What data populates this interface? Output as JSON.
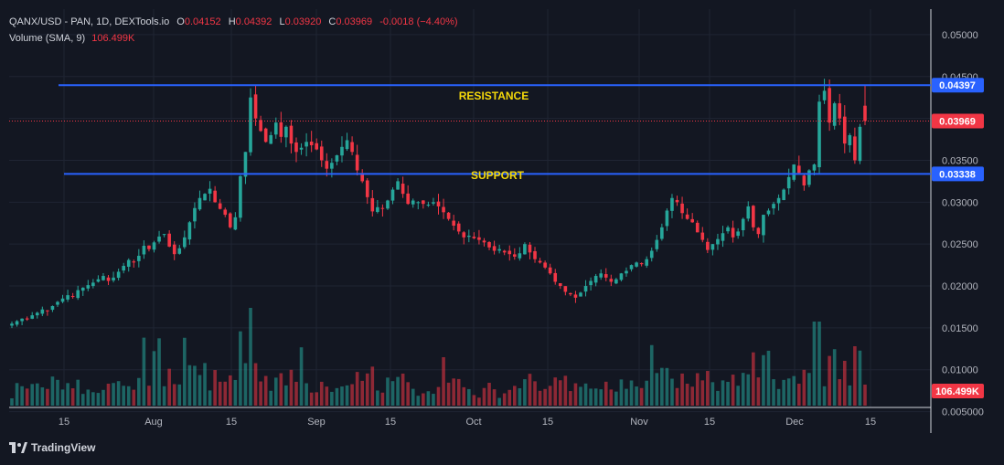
{
  "header": {
    "symbol": "QANX/USD - PAN, 1D, DEXTools.io",
    "o_label": "O",
    "o_value": "0.04152",
    "h_label": "H",
    "h_value": "0.04392",
    "l_label": "L",
    "l_value": "0.03920",
    "c_label": "C",
    "c_value": "0.03969",
    "change": "-0.0018 (−4.40%)",
    "volume_label": "Volume (SMA, 9)",
    "volume_value": "106.499K"
  },
  "branding": {
    "name": "TradingView"
  },
  "colors": {
    "background": "#131722",
    "grid": "#1f2433",
    "text": "#b2b5be",
    "up": "#26a69a",
    "down": "#f23645",
    "line": "#2962ff",
    "annotation": "#f5d90a"
  },
  "chart_data": {
    "type": "candlestick",
    "x_tick_labels": [
      "15",
      "Aug",
      "15",
      "Sep",
      "15",
      "Oct",
      "15",
      "Nov",
      "15",
      "Dec",
      "15"
    ],
    "price_axis_labels": [
      "0.05000",
      "0.04500",
      "0.04000",
      "0.03500",
      "0.03000",
      "0.02500",
      "0.02000",
      "0.01500",
      "0.01000",
      "0.005000"
    ],
    "price_range": [
      0.0005,
      0.0516
    ],
    "resistance": {
      "label": "RESISTANCE",
      "value": 0.04397,
      "tag": "0.04397"
    },
    "support": {
      "label": "SUPPORT",
      "value": 0.03338,
      "tag": "0.03338"
    },
    "last_price": {
      "value": 0.03969,
      "tag": "0.03969"
    },
    "volume_tag": "106.499K",
    "grid": true,
    "close_series": [
      0.0155,
      0.0158,
      0.0161,
      0.016,
      0.0165,
      0.0168,
      0.0172,
      0.017,
      0.0176,
      0.0181,
      0.0185,
      0.0189,
      0.0187,
      0.0195,
      0.0198,
      0.0201,
      0.0204,
      0.0208,
      0.0212,
      0.0206,
      0.021,
      0.0217,
      0.0224,
      0.0231,
      0.0228,
      0.0236,
      0.0248,
      0.0244,
      0.0252,
      0.0259,
      0.0262,
      0.0247,
      0.0238,
      0.0245,
      0.0258,
      0.0276,
      0.0293,
      0.0305,
      0.031,
      0.0316,
      0.03,
      0.0292,
      0.0285,
      0.027,
      0.0282,
      0.0331,
      0.036,
      0.0425,
      0.04,
      0.0385,
      0.0372,
      0.038,
      0.0395,
      0.0378,
      0.039,
      0.037,
      0.036,
      0.0365,
      0.0372,
      0.0368,
      0.0363,
      0.035,
      0.034,
      0.0347,
      0.0356,
      0.0366,
      0.0374,
      0.036,
      0.0338,
      0.0325,
      0.0306,
      0.0289,
      0.0294,
      0.0292,
      0.0302,
      0.0315,
      0.0325,
      0.031,
      0.0298,
      0.0302,
      0.03,
      0.0298,
      0.0297,
      0.03,
      0.0295,
      0.0288,
      0.028,
      0.0272,
      0.0265,
      0.0258,
      0.026,
      0.0257,
      0.0255,
      0.0252,
      0.0246,
      0.0242,
      0.0244,
      0.024,
      0.0238,
      0.0235,
      0.0239,
      0.025,
      0.024,
      0.0232,
      0.0228,
      0.0222,
      0.0215,
      0.0205,
      0.02,
      0.0193,
      0.019,
      0.0186,
      0.0192,
      0.02,
      0.0206,
      0.0212,
      0.0215,
      0.021,
      0.0205,
      0.0208,
      0.0215,
      0.0218,
      0.0225,
      0.0228,
      0.0226,
      0.0232,
      0.0242,
      0.0255,
      0.027,
      0.029,
      0.0305,
      0.03,
      0.0287,
      0.028,
      0.0276,
      0.0264,
      0.0255,
      0.0243,
      0.025,
      0.0256,
      0.0263,
      0.027,
      0.0258,
      0.0265,
      0.028,
      0.0295,
      0.027,
      0.0262,
      0.0285,
      0.029,
      0.0298,
      0.0305,
      0.0315,
      0.033,
      0.0345,
      0.0335,
      0.032,
      0.0338,
      0.0345,
      0.042,
      0.0433,
      0.0395,
      0.0418,
      0.04,
      0.037,
      0.038,
      0.035,
      0.039,
      0.0397
    ]
  }
}
